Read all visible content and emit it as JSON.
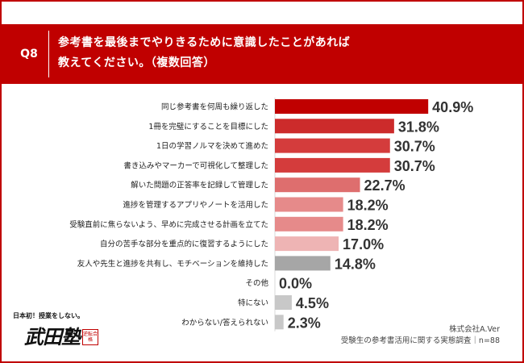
{
  "header": {
    "question_number": "Q8",
    "title": "参考書を最後までやりきるために意識したことがあれば\n教えてください。（複数回答）"
  },
  "colors": {
    "brand_red": "#c00000",
    "gray": "#a6a6a6"
  },
  "chart_data": {
    "type": "bar",
    "orientation": "horizontal",
    "categories": [
      "同じ参考書を何周も繰り返した",
      "1冊を完璧にすることを目標にした",
      "1日の学習ノルマを決めて進めた",
      "書き込みやマーカーで可視化して整理した",
      "解いた問題の正答率を記録して管理した",
      "進捗を管理するアプリやノートを活用した",
      "受験直前に焦らないよう、早めに完成させる計画を立てた",
      "自分の苦手な部分を重点的に復習するようにした",
      "友人や先生と進捗を共有し、モチベーションを維持した",
      "その他",
      "特にない",
      "わからない/答えられない"
    ],
    "values": [
      40.9,
      31.8,
      30.7,
      30.7,
      22.7,
      18.2,
      18.2,
      17.0,
      14.8,
      0.0,
      4.5,
      2.3
    ],
    "value_labels": [
      "40.9%",
      "31.8%",
      "30.7%",
      "30.7%",
      "22.7%",
      "18.2%",
      "18.2%",
      "17.0%",
      "14.8%",
      "0.0%",
      "4.5%",
      "2.3%"
    ],
    "bar_colors": [
      "#c00000",
      "#cc2b2b",
      "#d43c3c",
      "#d43c3c",
      "#de6e6e",
      "#e68a8a",
      "#e68a8a",
      "#eeb4b4",
      "#a6a6a6",
      "#c8c8c8",
      "#c8c8c8",
      "#c8c8c8"
    ],
    "xlim": [
      0,
      50
    ]
  },
  "footer": {
    "source_company": "株式会社A.Ver",
    "source_survey": "受験生の参考書活用に関する実態調査｜n=88"
  },
  "logo": {
    "tagline": "日本初！授業をしない。",
    "name": "武田塾",
    "seal": "逆転合格"
  }
}
